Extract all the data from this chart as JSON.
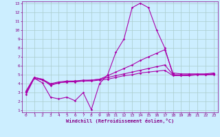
{
  "xlabel": "Windchill (Refroidissement éolien,°C)",
  "x": [
    0,
    1,
    2,
    3,
    4,
    5,
    6,
    7,
    8,
    9,
    10,
    11,
    12,
    13,
    14,
    15,
    16,
    17,
    18,
    19,
    20,
    21,
    22,
    23
  ],
  "line1": [
    2.8,
    4.6,
    4.1,
    2.5,
    2.3,
    2.5,
    2.1,
    3.0,
    1.1,
    4.0,
    5.0,
    7.5,
    9.0,
    12.5,
    13.0,
    12.5,
    10.0,
    8.0,
    5.0,
    4.9,
    4.9,
    5.0,
    5.0,
    5.1
  ],
  "line2": [
    3.2,
    4.7,
    4.5,
    3.8,
    4.1,
    4.2,
    4.3,
    4.3,
    4.4,
    4.5,
    4.9,
    5.3,
    5.7,
    6.1,
    6.6,
    7.0,
    7.4,
    7.8,
    5.2,
    5.1,
    5.1,
    5.1,
    5.1,
    5.2
  ],
  "line3": [
    3.1,
    4.7,
    4.5,
    4.0,
    4.2,
    4.3,
    4.3,
    4.4,
    4.4,
    4.5,
    4.7,
    4.9,
    5.1,
    5.3,
    5.5,
    5.7,
    5.9,
    6.1,
    5.0,
    5.0,
    5.0,
    5.0,
    5.0,
    5.1
  ],
  "line4": [
    3.0,
    4.6,
    4.4,
    3.9,
    4.1,
    4.2,
    4.2,
    4.3,
    4.3,
    4.4,
    4.5,
    4.7,
    4.9,
    5.0,
    5.2,
    5.3,
    5.4,
    5.5,
    4.9,
    4.9,
    5.0,
    5.0,
    5.0,
    5.0
  ],
  "line_color": "#aa00aa",
  "bg_color": "#cceeff",
  "grid_color": "#aacccc",
  "ylim": [
    1,
    13
  ],
  "yticks": [
    1,
    2,
    3,
    4,
    5,
    6,
    7,
    8,
    9,
    10,
    11,
    12,
    13
  ],
  "xticks": [
    0,
    1,
    2,
    3,
    4,
    5,
    6,
    7,
    8,
    9,
    10,
    11,
    12,
    13,
    14,
    15,
    16,
    17,
    18,
    19,
    20,
    21,
    22,
    23
  ]
}
